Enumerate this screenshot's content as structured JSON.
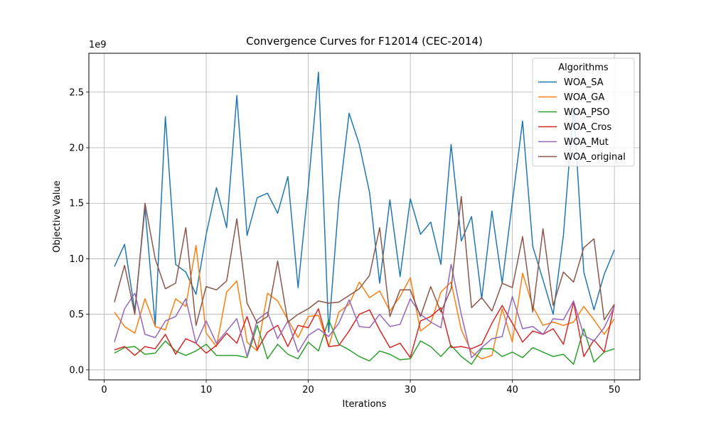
{
  "chart_data": {
    "type": "line",
    "title": "Convergence Curves for F12014 (CEC-2014)",
    "xlabel": "Iterations",
    "ylabel": "Objective Value",
    "y_scale_label": "1e9",
    "xlim": [
      -1.5,
      52.5
    ],
    "ylim": [
      -0.09,
      2.85
    ],
    "xticks": [
      0,
      10,
      20,
      30,
      40,
      50
    ],
    "yticks": [
      0.0,
      0.5,
      1.0,
      1.5,
      2.0,
      2.5
    ],
    "ytick_labels": [
      "0.0",
      "0.5",
      "1.0",
      "1.5",
      "2.0",
      "2.5"
    ],
    "grid": true,
    "legend": {
      "title": "Algorithms",
      "placement": "top-right"
    },
    "x": [
      1,
      2,
      3,
      4,
      5,
      6,
      7,
      8,
      9,
      10,
      11,
      12,
      13,
      14,
      15,
      16,
      17,
      18,
      19,
      20,
      21,
      22,
      23,
      24,
      25,
      26,
      27,
      28,
      29,
      30,
      31,
      32,
      33,
      34,
      35,
      36,
      37,
      38,
      39,
      40,
      41,
      42,
      43,
      44,
      45,
      46,
      47,
      48,
      49,
      50
    ],
    "series": [
      {
        "name": "WOA_SA",
        "color": "#1f77b4",
        "values": [
          0.93,
          1.13,
          0.53,
          1.46,
          0.4,
          2.28,
          0.95,
          0.88,
          0.68,
          1.22,
          1.64,
          1.28,
          2.47,
          1.21,
          1.55,
          1.59,
          1.41,
          1.74,
          0.74,
          1.65,
          2.68,
          0.34,
          1.53,
          2.31,
          2.03,
          1.6,
          0.78,
          1.53,
          0.84,
          1.54,
          1.22,
          1.33,
          0.95,
          2.03,
          1.16,
          1.38,
          0.64,
          1.43,
          0.78,
          1.51,
          2.24,
          1.11,
          0.81,
          0.5,
          1.21,
          2.37,
          0.88,
          0.54,
          0.86,
          1.08
        ]
      },
      {
        "name": "WOA_GA",
        "color": "#ff7f0e",
        "values": [
          0.52,
          0.39,
          0.33,
          0.64,
          0.39,
          0.36,
          0.64,
          0.57,
          1.12,
          0.33,
          0.21,
          0.7,
          0.8,
          0.25,
          0.17,
          0.69,
          0.62,
          0.45,
          0.29,
          0.48,
          0.49,
          0.21,
          0.52,
          0.59,
          0.79,
          0.65,
          0.71,
          0.53,
          0.66,
          0.83,
          0.35,
          0.42,
          0.7,
          0.79,
          0.36,
          0.16,
          0.1,
          0.13,
          0.55,
          0.25,
          0.87,
          0.57,
          0.4,
          0.43,
          0.4,
          0.43,
          0.57,
          0.45,
          0.32,
          0.46
        ]
      },
      {
        "name": "WOA_PSO",
        "color": "#2ca02c",
        "values": [
          0.15,
          0.2,
          0.21,
          0.14,
          0.15,
          0.26,
          0.17,
          0.13,
          0.17,
          0.23,
          0.13,
          0.13,
          0.13,
          0.11,
          0.4,
          0.1,
          0.23,
          0.14,
          0.1,
          0.25,
          0.17,
          0.45,
          0.23,
          0.18,
          0.12,
          0.08,
          0.17,
          0.14,
          0.09,
          0.1,
          0.26,
          0.21,
          0.12,
          0.22,
          0.12,
          0.05,
          0.19,
          0.19,
          0.12,
          0.16,
          0.11,
          0.2,
          0.16,
          0.12,
          0.14,
          0.05,
          0.37,
          0.07,
          0.16,
          0.19
        ]
      },
      {
        "name": "WOA_Cros",
        "color": "#d62728",
        "values": [
          0.18,
          0.21,
          0.13,
          0.21,
          0.19,
          0.32,
          0.14,
          0.28,
          0.24,
          0.15,
          0.22,
          0.33,
          0.24,
          0.48,
          0.18,
          0.34,
          0.4,
          0.21,
          0.4,
          0.38,
          0.55,
          0.21,
          0.22,
          0.35,
          0.5,
          0.54,
          0.36,
          0.2,
          0.24,
          0.11,
          0.44,
          0.48,
          0.56,
          0.2,
          0.21,
          0.19,
          0.23,
          0.42,
          0.58,
          0.42,
          0.25,
          0.35,
          0.32,
          0.37,
          0.23,
          0.61,
          0.12,
          0.27,
          0.16,
          0.59
        ]
      },
      {
        "name": "WOA_Mut",
        "color": "#9467bd",
        "values": [
          0.25,
          0.55,
          0.69,
          0.32,
          0.29,
          0.44,
          0.48,
          0.64,
          0.24,
          0.44,
          0.24,
          0.35,
          0.46,
          0.12,
          0.45,
          0.52,
          0.28,
          0.44,
          0.16,
          0.31,
          0.37,
          0.3,
          0.42,
          0.63,
          0.39,
          0.38,
          0.5,
          0.39,
          0.41,
          0.64,
          0.5,
          0.43,
          0.38,
          0.95,
          0.5,
          0.11,
          0.2,
          0.28,
          0.3,
          0.66,
          0.37,
          0.39,
          0.32,
          0.46,
          0.45,
          0.62,
          0.31,
          0.26,
          0.38,
          0.57
        ]
      },
      {
        "name": "WOA_original",
        "color": "#8c564b",
        "values": [
          0.61,
          0.94,
          0.5,
          1.5,
          1.0,
          0.73,
          0.78,
          1.28,
          0.4,
          0.75,
          0.72,
          0.8,
          1.36,
          0.6,
          0.42,
          0.48,
          0.98,
          0.43,
          0.5,
          0.55,
          0.62,
          0.6,
          0.61,
          0.67,
          0.73,
          0.85,
          1.28,
          0.48,
          0.72,
          0.72,
          0.48,
          0.75,
          0.52,
          0.73,
          1.56,
          0.56,
          0.65,
          0.53,
          0.78,
          0.74,
          1.2,
          0.52,
          1.27,
          0.58,
          0.88,
          0.79,
          1.1,
          1.18,
          0.45,
          0.59
        ]
      }
    ]
  }
}
